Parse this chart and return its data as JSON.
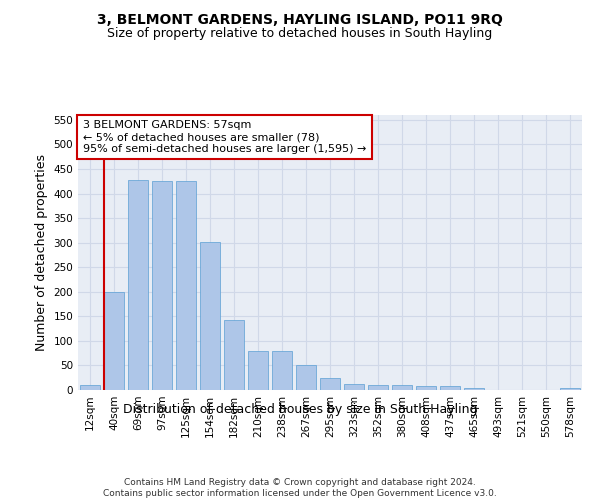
{
  "title": "3, BELMONT GARDENS, HAYLING ISLAND, PO11 9RQ",
  "subtitle": "Size of property relative to detached houses in South Hayling",
  "xlabel": "Distribution of detached houses by size in South Hayling",
  "ylabel": "Number of detached properties",
  "categories": [
    "12sqm",
    "40sqm",
    "69sqm",
    "97sqm",
    "125sqm",
    "154sqm",
    "182sqm",
    "210sqm",
    "238sqm",
    "267sqm",
    "295sqm",
    "323sqm",
    "352sqm",
    "380sqm",
    "408sqm",
    "437sqm",
    "465sqm",
    "493sqm",
    "521sqm",
    "550sqm",
    "578sqm"
  ],
  "values": [
    10,
    200,
    428,
    426,
    425,
    302,
    143,
    80,
    80,
    50,
    25,
    13,
    11,
    10,
    8,
    8,
    5,
    0,
    0,
    0,
    5
  ],
  "bar_color": "#aec6e8",
  "bar_edge_color": "#5a9fd4",
  "vline_color": "#cc0000",
  "annotation_text": "3 BELMONT GARDENS: 57sqm\n← 5% of detached houses are smaller (78)\n95% of semi-detached houses are larger (1,595) →",
  "annotation_box_color": "#ffffff",
  "annotation_box_edge": "#cc0000",
  "ylim": [
    0,
    560
  ],
  "yticks": [
    0,
    50,
    100,
    150,
    200,
    250,
    300,
    350,
    400,
    450,
    500,
    550
  ],
  "grid_color": "#d0d8e8",
  "bg_color": "#e8edf5",
  "footer": "Contains HM Land Registry data © Crown copyright and database right 2024.\nContains public sector information licensed under the Open Government Licence v3.0.",
  "title_fontsize": 10,
  "subtitle_fontsize": 9,
  "xlabel_fontsize": 9,
  "ylabel_fontsize": 9,
  "tick_fontsize": 7.5,
  "footer_fontsize": 6.5,
  "ann_fontsize": 8
}
